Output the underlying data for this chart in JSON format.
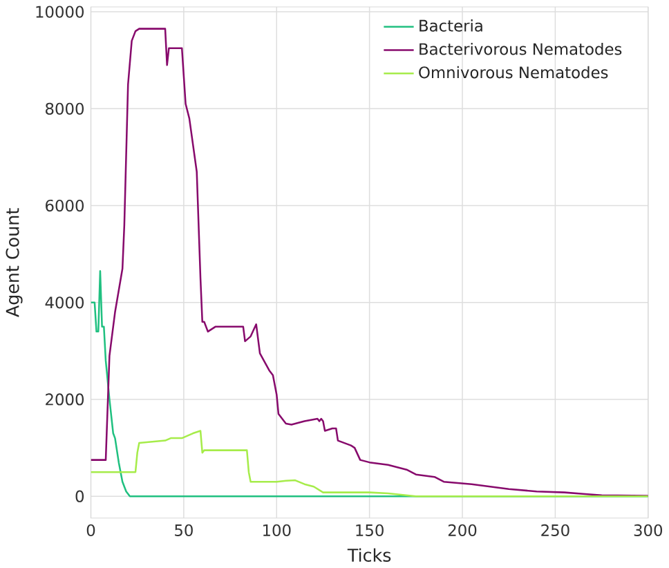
{
  "chart_data": {
    "type": "line",
    "xlabel": "Ticks",
    "ylabel": "Agent Count",
    "xlim": [
      0,
      300
    ],
    "ylim": [
      -450,
      10100
    ],
    "xticks": [
      0,
      50,
      100,
      150,
      200,
      250,
      300
    ],
    "yticks": [
      0,
      2000,
      4000,
      6000,
      8000,
      10000
    ],
    "grid": true,
    "legend": "top right",
    "line_style": "solid",
    "marker": "none",
    "series": [
      {
        "name": "Bacteria",
        "color": "#20c080",
        "x": [
          0,
          2,
          3,
          4,
          5,
          6,
          7,
          8,
          10,
          12,
          13,
          15,
          17,
          19,
          21,
          300
        ],
        "values": [
          4000,
          4000,
          3400,
          3400,
          4650,
          3500,
          3500,
          2800,
          2000,
          1300,
          1200,
          700,
          300,
          100,
          0,
          0
        ]
      },
      {
        "name": "Bacterivorous Nematodes",
        "color": "#870a6c",
        "x": [
          0,
          7,
          8,
          10,
          13,
          17,
          18,
          20,
          22,
          24,
          26,
          40,
          41,
          42,
          49,
          51,
          53,
          57,
          59,
          60,
          61,
          63,
          67,
          82,
          83,
          86,
          89,
          91,
          96,
          98,
          100,
          101,
          105,
          108,
          115,
          122,
          123,
          124,
          125,
          126,
          130,
          132,
          133,
          140,
          142,
          145,
          150,
          160,
          165,
          170,
          175,
          185,
          190,
          205,
          215,
          225,
          240,
          255,
          265,
          275,
          300
        ],
        "values": [
          750,
          750,
          750,
          2900,
          3800,
          4700,
          5600,
          8500,
          9400,
          9600,
          9650,
          9650,
          8900,
          9250,
          9250,
          8100,
          7800,
          6700,
          4500,
          3600,
          3600,
          3400,
          3500,
          3500,
          3200,
          3300,
          3550,
          2950,
          2600,
          2500,
          2100,
          1700,
          1500,
          1480,
          1550,
          1600,
          1550,
          1600,
          1550,
          1350,
          1400,
          1400,
          1150,
          1050,
          1000,
          750,
          700,
          650,
          600,
          550,
          450,
          400,
          300,
          250,
          200,
          150,
          100,
          80,
          50,
          20,
          10
        ]
      },
      {
        "name": "Omnivorous Nematodes",
        "color": "#a6ec4a",
        "x": [
          0,
          24,
          25,
          26,
          40,
          43,
          49,
          52,
          55,
          59,
          60,
          61,
          84,
          85,
          86,
          100,
          105,
          110,
          115,
          120,
          125,
          150,
          160,
          165,
          175,
          300
        ],
        "values": [
          500,
          500,
          900,
          1100,
          1150,
          1200,
          1200,
          1250,
          1300,
          1350,
          900,
          950,
          950,
          500,
          300,
          300,
          320,
          330,
          250,
          200,
          80,
          80,
          60,
          40,
          0,
          0
        ]
      }
    ]
  }
}
